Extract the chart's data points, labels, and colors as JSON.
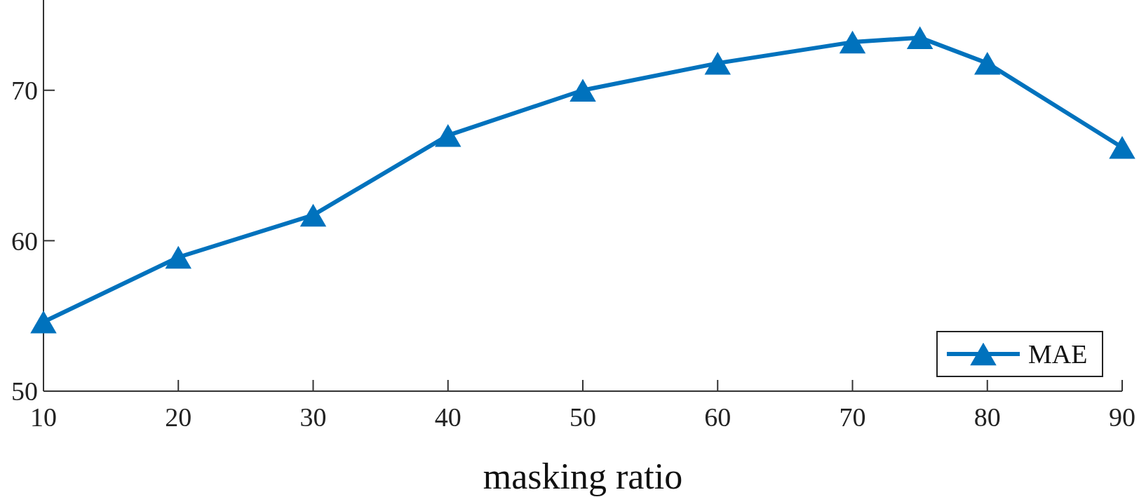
{
  "chart_data": {
    "type": "line",
    "xlabel": "masking ratio",
    "x": [
      10,
      20,
      30,
      40,
      50,
      60,
      70,
      75,
      80,
      90
    ],
    "series": [
      {
        "name": "MAE",
        "color": "#0072bd",
        "values": [
          54.6,
          58.9,
          61.7,
          67.0,
          70.0,
          71.8,
          73.2,
          73.5,
          71.8,
          66.2
        ]
      }
    ],
    "xlim": [
      10,
      90
    ],
    "xticks": [
      10,
      20,
      30,
      40,
      50,
      60,
      70,
      80,
      90
    ],
    "ylim": [
      50,
      76
    ],
    "yticks": [
      50,
      60,
      70
    ],
    "marker": "triangle",
    "line_style": "solid",
    "legend": "bottom right",
    "grid": false
  }
}
